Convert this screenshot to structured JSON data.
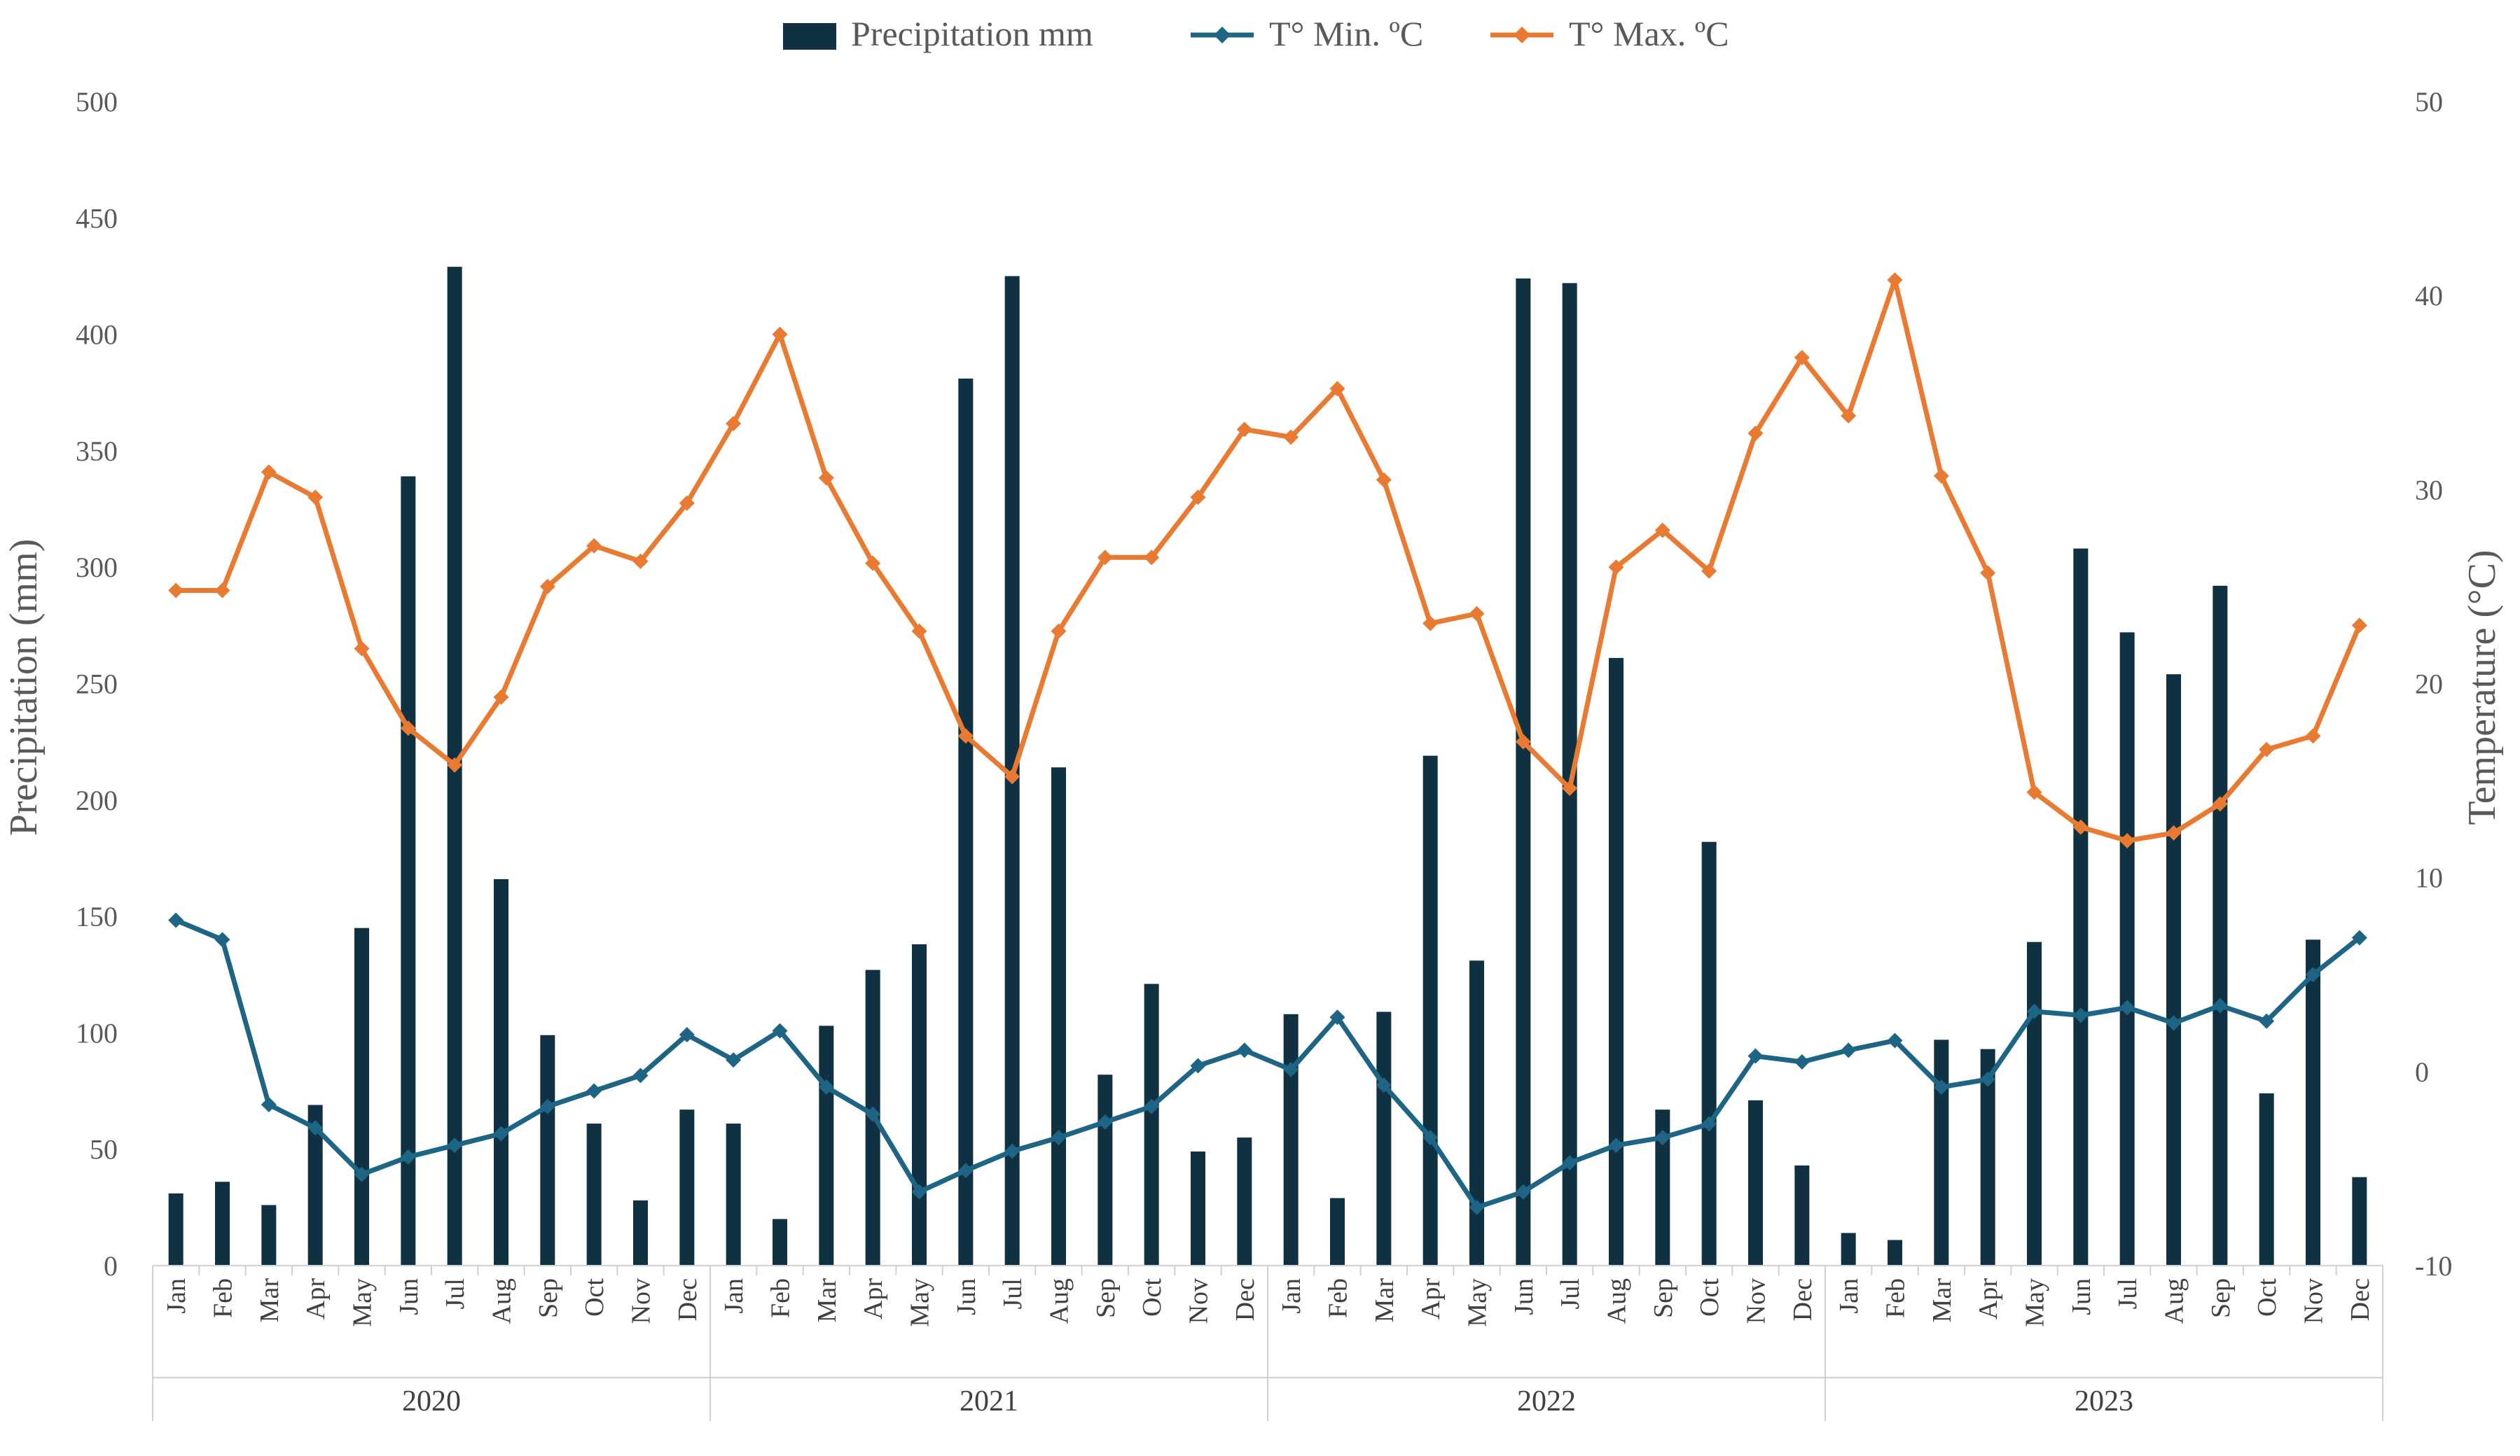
{
  "chart_data": {
    "type": "bar-line-combo",
    "legend": {
      "position": "top-center",
      "items": [
        {
          "label": "Precipitation mm",
          "kind": "bar"
        },
        {
          "label": "T° Min. ºC",
          "kind": "line"
        },
        {
          "label": "T° Max. ºC",
          "kind": "line"
        }
      ]
    },
    "ylabel_left": "Precipitation (mm)",
    "ylabel_right": "Temperature (°C)",
    "ylim_left": [
      0,
      500
    ],
    "ylim_right": [
      -10,
      50
    ],
    "yticks_left": [
      "0",
      "50",
      "100",
      "150",
      "200",
      "250",
      "300",
      "350",
      "400",
      "450",
      "500"
    ],
    "yticks_right": [
      "-10",
      "0",
      "10",
      "20",
      "30",
      "40",
      "50"
    ],
    "years": [
      "2020",
      "2021",
      "2022",
      "2023"
    ],
    "months": [
      "Jan",
      "Feb",
      "Mar",
      "Apr",
      "May",
      "Jun",
      "Jul",
      "Aug",
      "Sep",
      "Oct",
      "Nov",
      "Dec"
    ],
    "colors": {
      "precip": "#0f3142",
      "tmin": "#1e6485",
      "tmax": "#e97a32"
    },
    "series": [
      {
        "name": "Precipitation mm",
        "axis": "left",
        "values": [
          31,
          36,
          26,
          69,
          145,
          339,
          429,
          166,
          99,
          61,
          28,
          67,
          61,
          20,
          103,
          127,
          138,
          381,
          425,
          214,
          82,
          121,
          49,
          55,
          108,
          29,
          109,
          219,
          131,
          424,
          422,
          261,
          67,
          182,
          71,
          43,
          14,
          11,
          97,
          93,
          139,
          308,
          272,
          254,
          292,
          74,
          140,
          38
        ]
      },
      {
        "name": "T° Min. ºC",
        "axis": "right",
        "values": [
          7.8,
          6.8,
          -1.7,
          -2.9,
          -5.3,
          -4.4,
          -3.8,
          -3.2,
          -1.8,
          -1.0,
          -0.2,
          1.9,
          0.6,
          2.1,
          -0.8,
          -2.2,
          -6.2,
          -5.1,
          -4.1,
          -3.4,
          -2.6,
          -1.8,
          0.3,
          1.1,
          0.1,
          2.8,
          -0.7,
          -3.4,
          -7.0,
          -6.2,
          -4.7,
          -3.8,
          -3.4,
          -2.7,
          0.8,
          0.5,
          1.1,
          1.6,
          -0.8,
          -0.4,
          3.1,
          2.9,
          3.3,
          2.5,
          3.4,
          2.6,
          5.0,
          6.9
        ]
      },
      {
        "name": "T° Max. ºC",
        "axis": "right",
        "values": [
          24.8,
          24.8,
          30.9,
          29.6,
          21.8,
          17.7,
          15.8,
          19.3,
          25.0,
          27.1,
          26.3,
          29.3,
          33.4,
          38.0,
          30.6,
          26.2,
          22.7,
          17.3,
          15.2,
          22.7,
          26.5,
          26.5,
          29.6,
          33.1,
          32.7,
          35.2,
          30.5,
          23.1,
          23.6,
          17.0,
          14.6,
          26.0,
          27.9,
          25.8,
          32.9,
          36.8,
          33.8,
          40.8,
          30.7,
          25.7,
          14.4,
          12.6,
          11.9,
          12.3,
          13.8,
          16.6,
          17.3,
          23.0
        ]
      }
    ]
  }
}
